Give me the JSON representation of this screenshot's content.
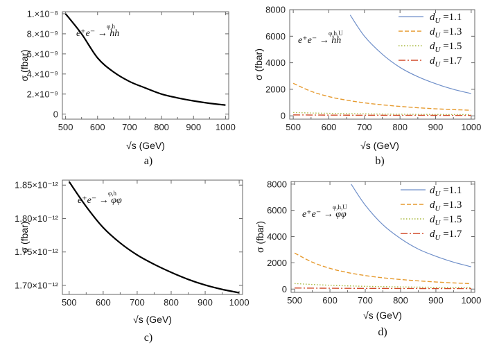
{
  "chart_data": [
    {
      "id": "a",
      "type": "line",
      "caption": "a)",
      "xlabel": "√s (GeV)",
      "ylabel": "σ (fbar)",
      "xlim": [
        490,
        1010
      ],
      "ylim": [
        -5e-10,
        1.02e-08
      ],
      "xticks": [
        500,
        600,
        700,
        800,
        900,
        1000
      ],
      "xtick_labels": [
        "500",
        "600",
        "700",
        "800",
        "900",
        "1000"
      ],
      "yticks": [
        0,
        2e-09,
        4e-09,
        6e-09,
        8e-09,
        1e-08
      ],
      "ytick_labels": [
        "0",
        "2.×10⁻⁹",
        "4.×10⁻⁹",
        "6.×10⁻⁹",
        "8.×10⁻⁹",
        "1.×10⁻⁸"
      ],
      "annotation": "e⁺e⁻ → hh",
      "annotation_super": "φ,h",
      "series": [
        {
          "name": "e+e- → hh",
          "color": "#000000",
          "dash": "solid",
          "width": 2.2,
          "x": [
            500,
            550,
            600,
            650,
            700,
            750,
            800,
            850,
            900,
            950,
            1000
          ],
          "y": [
            1e-08,
            8e-09,
            5.6e-09,
            4.2e-09,
            3.25e-09,
            2.6e-09,
            2e-09,
            1.62e-09,
            1.32e-09,
            1.08e-09,
            9e-10
          ]
        }
      ]
    },
    {
      "id": "b",
      "type": "line",
      "caption": "b)",
      "xlabel": "√s (GeV)",
      "ylabel": "σ (fbar)",
      "xlim": [
        490,
        1010
      ],
      "ylim": [
        -250,
        8000
      ],
      "xticks": [
        500,
        600,
        700,
        800,
        900,
        1000
      ],
      "xtick_labels": [
        "500",
        "600",
        "700",
        "800",
        "900",
        "1000"
      ],
      "yticks": [
        0,
        2000,
        4000,
        6000,
        8000
      ],
      "ytick_labels": [
        "0",
        "2000",
        "4000",
        "6000",
        "8000"
      ],
      "annotation": "e⁺e⁻ → hh",
      "annotation_super": "φ,h,U",
      "legend_position": "top-right",
      "series": [
        {
          "name": "d_U = 1.1",
          "legend_label": "1.1",
          "color": "#6f8fc9",
          "dash": "solid",
          "width": 1.2,
          "x": [
            660,
            700,
            750,
            800,
            850,
            900,
            950,
            1000
          ],
          "y": [
            7600,
            6000,
            4650,
            3650,
            2950,
            2420,
            2000,
            1680
          ]
        },
        {
          "name": "d_U = 1.3",
          "legend_label": "1.3",
          "color": "#e69a2e",
          "dash": "6,3",
          "width": 1.4,
          "x": [
            500,
            550,
            600,
            650,
            700,
            750,
            800,
            850,
            900,
            950,
            1000
          ],
          "y": [
            2450,
            1850,
            1450,
            1180,
            980,
            830,
            710,
            610,
            530,
            470,
            420
          ]
        },
        {
          "name": "d_U = 1.5",
          "legend_label": "1.5",
          "color": "#a7b83d",
          "dash": "1.5,2.5",
          "width": 1.4,
          "x": [
            500,
            550,
            600,
            650,
            700,
            750,
            800,
            850,
            900,
            950,
            1000
          ],
          "y": [
            250,
            215,
            190,
            168,
            150,
            136,
            124,
            114,
            106,
            99,
            93
          ]
        },
        {
          "name": "d_U = 1.7",
          "legend_label": "1.7",
          "color": "#d24b2b",
          "dash": "10,3,2,3",
          "width": 1.4,
          "x": [
            500,
            550,
            600,
            650,
            700,
            750,
            800,
            850,
            900,
            950,
            1000
          ],
          "y": [
            70,
            62,
            56,
            51,
            47,
            44,
            41,
            39,
            37,
            35,
            33
          ]
        }
      ]
    },
    {
      "id": "c",
      "type": "line",
      "caption": "c)",
      "xlabel": "√s (GeV)",
      "ylabel": "σ (fbar)",
      "xlim": [
        480,
        1010
      ],
      "ylim": [
        1.6865e-12,
        1.8575e-12
      ],
      "xticks": [
        500,
        600,
        700,
        800,
        900,
        1000
      ],
      "xtick_labels": [
        "500",
        "600",
        "700",
        "800",
        "900",
        "1000"
      ],
      "yticks": [
        1.7e-12,
        1.75e-12,
        1.8e-12,
        1.85e-12
      ],
      "ytick_labels": [
        "1.70×10⁻¹²",
        "1.75×10⁻¹²",
        "1.80×10⁻¹²",
        "1.85×10⁻¹²"
      ],
      "annotation": "e⁺e⁻ → φφ",
      "annotation_super": "φ,h",
      "series": [
        {
          "name": "e+e- → φφ",
          "color": "#000000",
          "dash": "solid",
          "width": 2.2,
          "x": [
            500,
            550,
            600,
            650,
            700,
            750,
            800,
            850,
            900,
            950,
            1000
          ],
          "y": [
            1.855e-12,
            1.818e-12,
            1.7865e-12,
            1.7635e-12,
            1.7455e-12,
            1.7315e-12,
            1.7195e-12,
            1.709e-12,
            1.7005e-12,
            1.694e-12,
            1.689e-12
          ]
        }
      ]
    },
    {
      "id": "d",
      "type": "line",
      "caption": "d)",
      "xlabel": "√s (GeV)",
      "ylabel": "σ (fbar)",
      "xlim": [
        490,
        1010
      ],
      "ylim": [
        -250,
        8200
      ],
      "xticks": [
        500,
        600,
        700,
        800,
        900,
        1000
      ],
      "xtick_labels": [
        "500",
        "600",
        "700",
        "800",
        "900",
        "1000"
      ],
      "yticks": [
        0,
        2000,
        4000,
        6000,
        8000
      ],
      "ytick_labels": [
        "0",
        "2000",
        "4000",
        "6000",
        "8000"
      ],
      "annotation": "e⁺e⁻ → φφ",
      "annotation_super": "φ,h,U",
      "legend_position": "top-right",
      "series": [
        {
          "name": "d_U = 1.1",
          "legend_label": "1.1",
          "color": "#6f8fc9",
          "dash": "solid",
          "width": 1.2,
          "x": [
            660,
            700,
            750,
            800,
            850,
            900,
            950,
            1000
          ],
          "y": [
            8000,
            6400,
            4900,
            3850,
            3050,
            2500,
            2050,
            1700
          ]
        },
        {
          "name": "d_U = 1.3",
          "legend_label": "1.3",
          "color": "#e69a2e",
          "dash": "6,3",
          "width": 1.4,
          "x": [
            500,
            550,
            600,
            650,
            700,
            750,
            800,
            850,
            900,
            950,
            1000
          ],
          "y": [
            2750,
            2050,
            1580,
            1260,
            1030,
            860,
            730,
            625,
            540,
            470,
            410
          ]
        },
        {
          "name": "d_U = 1.5",
          "legend_label": "1.5",
          "color": "#a7b83d",
          "dash": "1.5,2.5",
          "width": 1.4,
          "x": [
            500,
            550,
            600,
            650,
            700,
            750,
            800,
            850,
            900,
            950,
            1000
          ],
          "y": [
            420,
            350,
            290,
            245,
            210,
            185,
            165,
            148,
            134,
            122,
            112
          ]
        },
        {
          "name": "d_U = 1.7",
          "legend_label": "1.7",
          "color": "#d24b2b",
          "dash": "10,3,2,3",
          "width": 1.4,
          "x": [
            500,
            550,
            600,
            650,
            700,
            750,
            800,
            850,
            900,
            950,
            1000
          ],
          "y": [
            80,
            70,
            62,
            56,
            51,
            47,
            44,
            41,
            39,
            37,
            35
          ]
        }
      ]
    }
  ]
}
